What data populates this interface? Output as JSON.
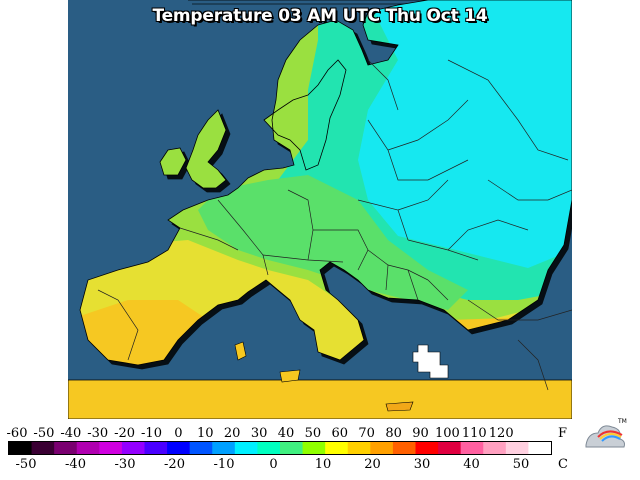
{
  "title": "Temperature 03 AM UTC Thu Oct 14",
  "legend": {
    "fahrenheit_unit": "F",
    "celsius_unit": "C",
    "fahrenheit_ticks": [
      "-60",
      "-50",
      "-40",
      "-30",
      "-20",
      "-10",
      "0",
      "10",
      "20",
      "30",
      "40",
      "50",
      "60",
      "70",
      "80",
      "90",
      "100",
      "110",
      "120"
    ],
    "celsius_ticks": [
      "-50",
      "-40",
      "-30",
      "-20",
      "-10",
      "0",
      "10",
      "20",
      "30",
      "40",
      "50"
    ],
    "colorbar_colors": [
      "#000000",
      "#3a0033",
      "#7a0070",
      "#b000b0",
      "#d000e0",
      "#9400ff",
      "#4a00ff",
      "#0000ff",
      "#0055ff",
      "#00a0ff",
      "#00f0ff",
      "#00ffc0",
      "#40f080",
      "#90ff00",
      "#ffff00",
      "#ffd000",
      "#ffa000",
      "#ff6000",
      "#ff0000",
      "#e00040",
      "#ff60a0",
      "#ffa0c0",
      "#ffd0e0",
      "#ffffff"
    ]
  },
  "colors": {
    "sea": "#2a5d84",
    "cold": "#18e8f0",
    "cool": "#22e4b0",
    "mild": "#5ae06a",
    "warm_green": "#9ae040",
    "yellow": "#e6e030",
    "orange": "#f6c820",
    "hot": "#f2a818",
    "land_outside": "#ffffff"
  },
  "logo": "weather-logo-icon"
}
